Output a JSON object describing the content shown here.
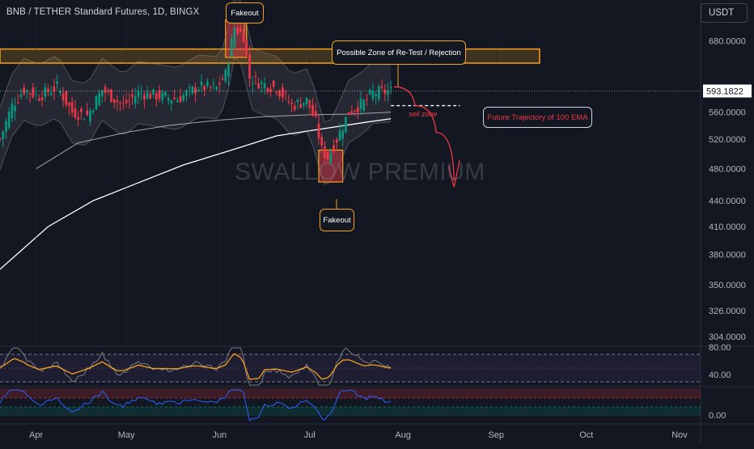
{
  "symbol_title": "BNB / TETHER Standard Futures, 1D, BINGX",
  "currency_button": "USDT",
  "watermark": "SWALLOW PREMIUM",
  "annotations": {
    "fakeout_top": "Fakeout",
    "fakeout_bottom": "Fakeout",
    "retest_zone": "Possible Zone of Re-Test / Rejection",
    "sell_zone": "sell zone",
    "ema_trajectory": "Future Trajectory of 100 EMA"
  },
  "colors": {
    "background": "#131722",
    "up_candle": "#089981",
    "down_candle": "#f23645",
    "zone_border": "#f7a21b",
    "ema_100": "#ffffff",
    "bollinger_band": "#787b86",
    "rsi_line": "#787b86",
    "rsi_ma": "#f7a21b",
    "oscillator_line": "#2962ff",
    "projection_arrow": "#f23645"
  },
  "price_axis": {
    "labels": [
      "680.0000",
      "560.0000",
      "520.0000",
      "480.0000",
      "440.0000",
      "410.0000",
      "380.0000",
      "350.0000",
      "326.0000",
      "304.0000"
    ],
    "current_price": "593.1822",
    "scale": "log"
  },
  "rsi_axis": {
    "labels": [
      "80.00",
      "40.00"
    ]
  },
  "osc_axis": {
    "labels": [
      "0.00"
    ]
  },
  "time_axis": {
    "labels": [
      "Apr",
      "May",
      "Jun",
      "Jul",
      "Aug",
      "Sep",
      "Oct",
      "Nov"
    ]
  },
  "chart_data": {
    "type": "candlestick",
    "title": "BNB / TETHER Standard Futures, 1D, BINGX",
    "y_scale": "log",
    "ylim": [
      296,
      760
    ],
    "x_range": [
      "2024-03-20",
      "2024-11-08"
    ],
    "candles": {
      "start": "2024-03-20",
      "end": "2024-07-28",
      "close_path": [
        [
          "2024-03-20",
          520
        ],
        [
          "2024-03-24",
          570
        ],
        [
          "2024-03-28",
          595
        ],
        [
          "2024-04-02",
          585
        ],
        [
          "2024-04-08",
          600
        ],
        [
          "2024-04-13",
          560
        ],
        [
          "2024-04-18",
          555
        ],
        [
          "2024-04-23",
          595
        ],
        [
          "2024-04-30",
          570
        ],
        [
          "2024-05-05",
          590
        ],
        [
          "2024-05-12",
          585
        ],
        [
          "2024-05-18",
          580
        ],
        [
          "2024-05-25",
          600
        ],
        [
          "2024-05-31",
          598
        ],
        [
          "2024-06-03",
          620
        ],
        [
          "2024-06-06",
          705
        ],
        [
          "2024-06-09",
          690
        ],
        [
          "2024-06-11",
          615
        ],
        [
          "2024-06-15",
          605
        ],
        [
          "2024-06-20",
          598
        ],
        [
          "2024-06-25",
          570
        ],
        [
          "2024-06-30",
          578
        ],
        [
          "2024-07-03",
          545
        ],
        [
          "2024-07-05",
          505
        ],
        [
          "2024-07-07",
          495
        ],
        [
          "2024-07-10",
          520
        ],
        [
          "2024-07-14",
          560
        ],
        [
          "2024-07-19",
          575
        ],
        [
          "2024-07-22",
          590
        ],
        [
          "2024-07-28",
          593
        ]
      ]
    },
    "horizontal_zone": {
      "low": 640,
      "high": 665,
      "label": "Possible Zone of Re-Test / Rejection"
    },
    "fakeout_boxes": [
      {
        "date_start": "2024-06-03",
        "date_end": "2024-06-10",
        "low": 650,
        "high": 720,
        "label": "Fakeout"
      },
      {
        "date_start": "2024-07-04",
        "date_end": "2024-07-12",
        "low": 463,
        "high": 505,
        "label": "Fakeout"
      }
    ],
    "ema_100": [
      [
        "2024-03-20",
        365
      ],
      [
        "2024-04-05",
        410
      ],
      [
        "2024-04-20",
        440
      ],
      [
        "2024-05-05",
        462
      ],
      [
        "2024-05-20",
        485
      ],
      [
        "2024-06-05",
        505
      ],
      [
        "2024-06-20",
        525
      ],
      [
        "2024-07-05",
        535
      ],
      [
        "2024-07-20",
        545
      ],
      [
        "2024-07-28",
        550
      ]
    ],
    "ema_secondary": [
      [
        "2024-04-01",
        480
      ],
      [
        "2024-04-15",
        515
      ],
      [
        "2024-05-01",
        530
      ],
      [
        "2024-05-15",
        540
      ],
      [
        "2024-06-01",
        548
      ],
      [
        "2024-06-15",
        553
      ],
      [
        "2024-07-01",
        556
      ],
      [
        "2024-07-15",
        557
      ],
      [
        "2024-07-28",
        560
      ]
    ],
    "ema_projection": {
      "from": "2024-07-28",
      "to": "2024-08-20",
      "value": 570
    },
    "projected_path": [
      [
        "2024-07-29",
        600
      ],
      [
        "2024-08-05",
        570
      ],
      [
        "2024-08-12",
        530
      ],
      [
        "2024-08-18",
        465
      ]
    ],
    "rsi": {
      "upper": 70,
      "lower": 30,
      "axis_labels": [
        80,
        40
      ]
    }
  }
}
